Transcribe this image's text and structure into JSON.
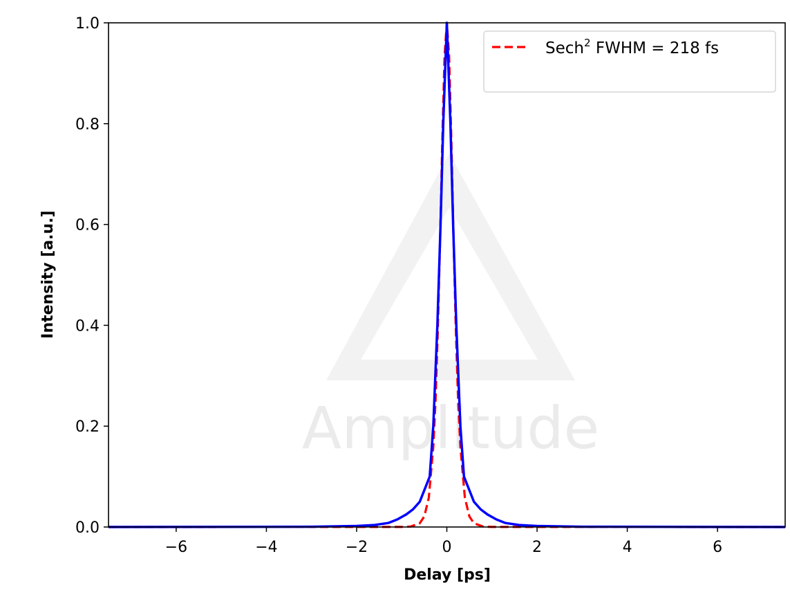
{
  "chart_data": {
    "type": "line",
    "title": "",
    "xlabel": "Delay [ps]",
    "ylabel": "Intensity [a.u.]",
    "xlim": [
      -7.5,
      7.5
    ],
    "ylim": [
      0,
      1.0
    ],
    "xticks": [
      -6,
      -4,
      -2,
      0,
      2,
      4,
      6
    ],
    "xtick_labels": [
      "−6",
      "−4",
      "−2",
      "0",
      "2",
      "4",
      "6"
    ],
    "yticks": [
      0,
      0.2,
      0.4,
      0.6,
      0.8,
      1.0
    ],
    "ytick_labels": [
      "0.0",
      "0.2",
      "0.4",
      "0.6",
      "0.8",
      "1.0"
    ],
    "grid": false,
    "legend_position": "top-right",
    "series": [
      {
        "name": "",
        "color": "#0000ff",
        "style": "solid",
        "x": [
          -7.5,
          -3,
          -2,
          -1.6,
          -1.3,
          -1.1,
          -0.9,
          -0.75,
          -0.6,
          -0.38,
          -0.3,
          -0.21,
          -0.14,
          -0.08,
          0,
          0.08,
          0.14,
          0.21,
          0.3,
          0.38,
          0.6,
          0.75,
          0.9,
          1.1,
          1.3,
          1.6,
          2,
          3,
          7.5
        ],
        "y": [
          0,
          0.0005,
          0.002,
          0.004,
          0.008,
          0.015,
          0.025,
          0.035,
          0.05,
          0.1,
          0.2,
          0.4,
          0.6,
          0.8,
          1.0,
          0.8,
          0.6,
          0.4,
          0.2,
          0.1,
          0.05,
          0.035,
          0.025,
          0.015,
          0.008,
          0.004,
          0.002,
          0.0005,
          0
        ]
      },
      {
        "name": "Sech² FWHM = 218 fs",
        "color": "#ff0000",
        "style": "dashed",
        "x": [
          -7.5,
          -1.0,
          -0.8,
          -0.6,
          -0.5,
          -0.4,
          -0.3,
          -0.25,
          -0.2,
          -0.15,
          -0.1,
          -0.05,
          0,
          0.05,
          0.1,
          0.15,
          0.2,
          0.25,
          0.3,
          0.4,
          0.5,
          0.6,
          0.8,
          1.0,
          7.5
        ],
        "y": [
          0,
          0.0001,
          0.0009,
          0.0074,
          0.021,
          0.058,
          0.159,
          0.252,
          0.389,
          0.567,
          0.768,
          0.934,
          1.0,
          0.934,
          0.768,
          0.567,
          0.389,
          0.252,
          0.159,
          0.058,
          0.021,
          0.0074,
          0.0009,
          0.0001,
          0
        ]
      }
    ],
    "legend": {
      "label_main": "Sech",
      "label_sup": "2",
      "label_rest": " FWHM = 218 fs"
    }
  },
  "watermark": {
    "text": "Amplitude",
    "color": "#ebebeb"
  }
}
